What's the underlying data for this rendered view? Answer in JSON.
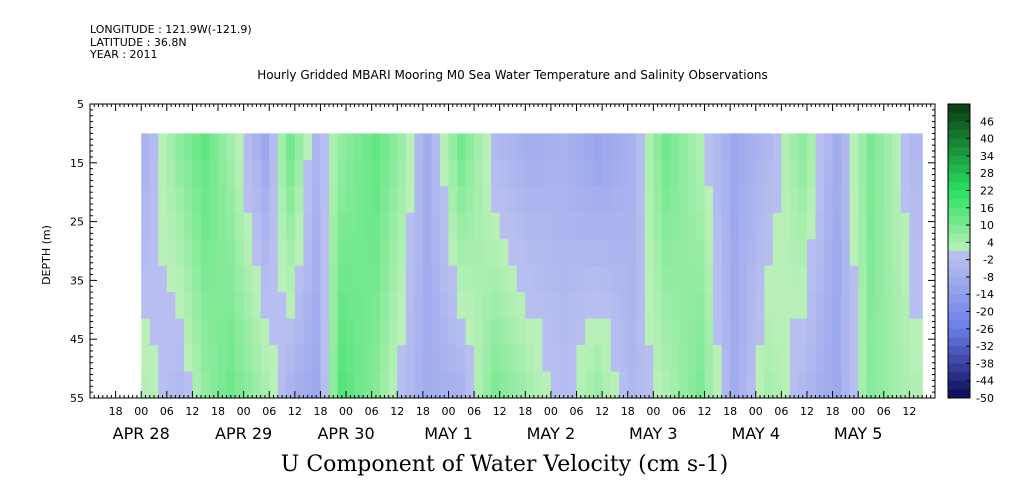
{
  "header": {
    "longitude": "LONGITUDE : 121.9W(-121.9)",
    "latitude": "LATITUDE : 36.8N",
    "year": "YEAR : 2011"
  },
  "chart_data": {
    "type": "heatmap",
    "title": "Hourly Gridded MBARI Mooring M0 Sea Water Temperature and Salinity Observations",
    "xlabel": "U Component of Water Velocity (cm s-1)",
    "ylabel": "DEPTH (m)",
    "y_ticks": [
      "5",
      "15",
      "25",
      "35",
      "45",
      "55"
    ],
    "ylim": [
      55,
      5
    ],
    "data_depth_range": [
      10,
      55
    ],
    "x_start": "2011-04-27 T12:00",
    "x_end": "2011-05-05 T18:00",
    "data_start": "2011-04-28 T00:00",
    "data_end": "2011-05-05 T15:00",
    "hour_ticks": [
      "18",
      "00",
      "06",
      "12",
      "18",
      "00",
      "06",
      "12",
      "18",
      "00",
      "06",
      "12",
      "18",
      "00",
      "06",
      "12",
      "18",
      "00",
      "06",
      "12",
      "18",
      "00",
      "06",
      "12",
      "18",
      "00",
      "06",
      "12",
      "18",
      "00",
      "06",
      "12"
    ],
    "date_labels": [
      {
        "label": "APR 28",
        "date": "2011-04-28"
      },
      {
        "label": "APR 29",
        "date": "2011-04-29"
      },
      {
        "label": "APR 30",
        "date": "2011-04-30"
      },
      {
        "label": "MAY  1",
        "date": "2011-05-01"
      },
      {
        "label": "MAY  2",
        "date": "2011-05-02"
      },
      {
        "label": "MAY  3",
        "date": "2011-05-03"
      },
      {
        "label": "MAY  4",
        "date": "2011-05-04"
      },
      {
        "label": "MAY  5",
        "date": "2011-05-05"
      }
    ],
    "colorbar": {
      "labels": [
        "46",
        "40",
        "34",
        "28",
        "22",
        "16",
        "10",
        "4",
        "-2",
        "-8",
        "-14",
        "-20",
        "-26",
        "-32",
        "-38",
        "-44",
        "-50"
      ],
      "range": [
        -50,
        52
      ],
      "step": 3,
      "colors": {
        "low": "#0a0a5a",
        "mid_neg": "#6a7ee8",
        "near_zero_neg": "#b8bff0",
        "near_zero_pos": "#b8f0b8",
        "mid_pos": "#28e060",
        "high": "#0a3a12"
      }
    },
    "series": [
      {
        "name": "",
        "x": [
          "04-28 00h",
          "04-28 08h",
          "04-28 14h",
          "04-28 20h",
          "04-29 04h",
          "04-29 10h",
          "04-29 16h",
          "04-29 22h",
          "04-30 06h",
          "04-30 12h",
          "04-30 18h",
          "05-01 02h",
          "05-01 10h",
          "05-01 18h",
          "05-02 02h",
          "05-02 10h",
          "05-02 18h",
          "05-03 02h",
          "05-03 10h",
          "05-03 18h",
          "05-04 02h",
          "05-04 10h",
          "05-04 18h",
          "05-05 02h",
          "05-05 12h"
        ],
        "surface_u_cm_s": [
          -6,
          8,
          14,
          4,
          -10,
          12,
          -4,
          6,
          14,
          6,
          -8,
          12,
          -4,
          -8,
          -6,
          -12,
          -6,
          12,
          2,
          -10,
          -4,
          8,
          -8,
          10,
          -4
        ],
        "deep_u_cm_s": [
          2,
          -4,
          6,
          12,
          4,
          -6,
          -10,
          16,
          8,
          -2,
          -8,
          -6,
          10,
          4,
          -2,
          6,
          -4,
          2,
          10,
          -8,
          4,
          -4,
          -10,
          8,
          2
        ]
      }
    ]
  }
}
